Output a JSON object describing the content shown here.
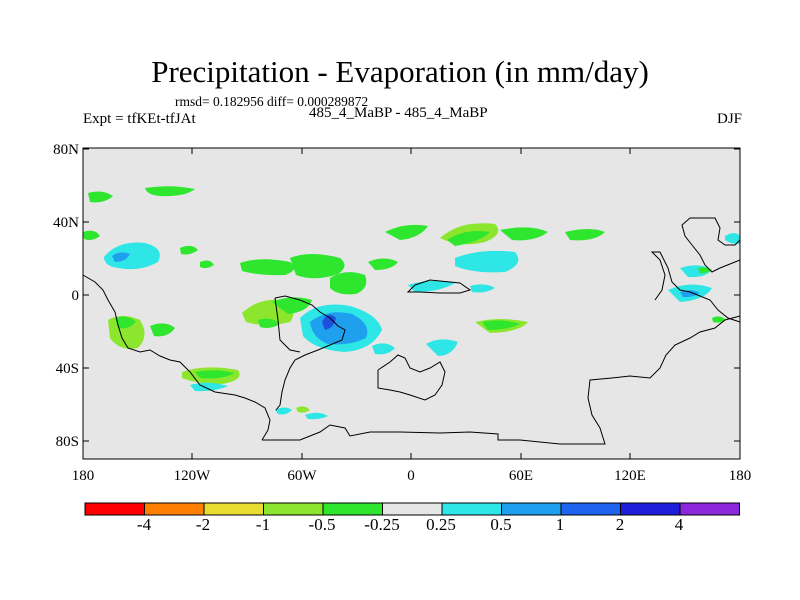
{
  "title": "Precipitation - Evaporation (in mm/day)",
  "stats": "rmsd= 0.182956 diff= 0.000289872",
  "expt_label": "Expt = tfKEt-tfJAt",
  "center_label": "485_4_MaBP - 485_4_MaBP",
  "season": "DJF",
  "colors": {
    "background_field": "#e6e6e6",
    "neg_0_25_to_0_5": "#2ee62e",
    "neg_0_5_to_1": "#8ce62e",
    "pos_0_25_to_0_5": "#2ee6e6",
    "pos_0_5_to_1": "#1ea0ee",
    "pos_1_to_2": "#1e50dc",
    "coastline": "#000000"
  },
  "axes": {
    "lon_ticks": [
      "180",
      "120W",
      "60W",
      "0",
      "60E",
      "120E",
      "180"
    ],
    "lat_ticks": [
      "80N",
      "40N",
      "0",
      "40S",
      "80S"
    ],
    "lon_range": [
      -180,
      180
    ],
    "lat_range": [
      -90,
      90
    ]
  },
  "colorbar": {
    "labels": [
      "-4",
      "-2",
      "-1",
      "-0.5",
      "-0.25",
      "0.25",
      "0.5",
      "1",
      "2",
      "4"
    ],
    "colors": [
      "#ff0000",
      "#ff8000",
      "#e6dc32",
      "#8ce62e",
      "#2ee62e",
      "#e6e6e6",
      "#2ee6e6",
      "#1ea0ee",
      "#1e64ee",
      "#1e1edc",
      "#8c28dc"
    ]
  }
}
